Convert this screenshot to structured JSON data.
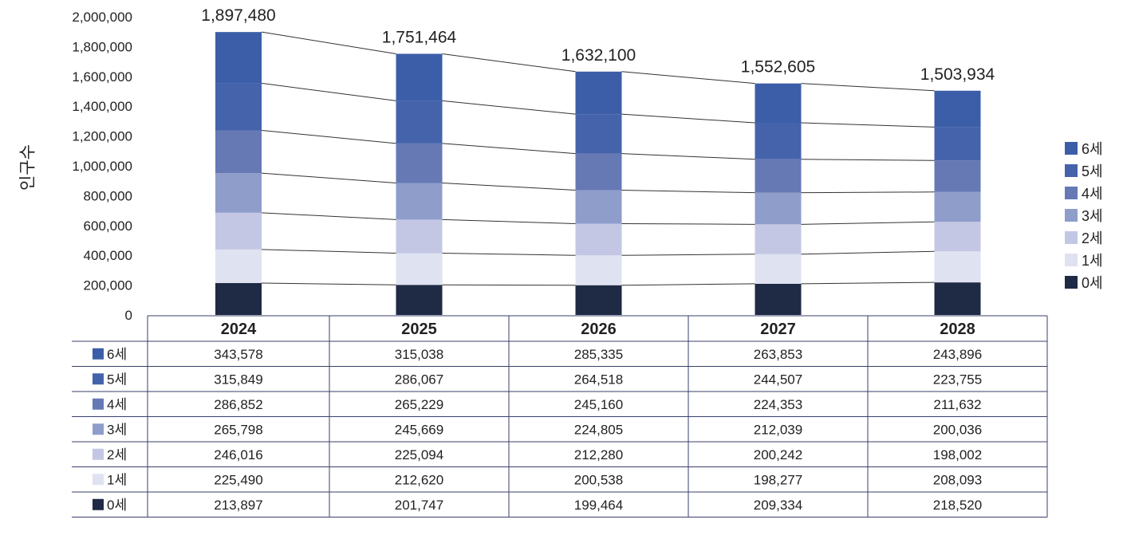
{
  "chart_data": {
    "type": "bar",
    "stacked": true,
    "categories": [
      "2024",
      "2025",
      "2026",
      "2027",
      "2028"
    ],
    "ylabel": "인구수",
    "ylim": [
      0,
      2000000
    ],
    "yticks": [
      "0",
      "200,000",
      "400,000",
      "600,000",
      "800,000",
      "1,000,000",
      "1,200,000",
      "1,400,000",
      "1,600,000",
      "1,800,000",
      "2,000,000"
    ],
    "totals": [
      "1,897,480",
      "1,751,464",
      "1,632,100",
      "1,552,605",
      "1,503,934"
    ],
    "legend_position": "right",
    "grid": false,
    "series": [
      {
        "name": "0세",
        "color": "#1f2a44",
        "values": [
          213897,
          201747,
          199464,
          209334,
          218520
        ],
        "labels": [
          "213,897",
          "201,747",
          "199,464",
          "209,334",
          "218,520"
        ]
      },
      {
        "name": "1세",
        "color": "#dfe2f1",
        "values": [
          225490,
          212620,
          200538,
          198277,
          208093
        ],
        "labels": [
          "225,490",
          "212,620",
          "200,538",
          "198,277",
          "208,093"
        ]
      },
      {
        "name": "2세",
        "color": "#c3c7e4",
        "values": [
          246016,
          225094,
          212280,
          200242,
          198002
        ],
        "labels": [
          "246,016",
          "225,094",
          "212,280",
          "200,242",
          "198,002"
        ]
      },
      {
        "name": "3세",
        "color": "#8f9dcb",
        "values": [
          265798,
          245669,
          224805,
          212039,
          200036
        ],
        "labels": [
          "265,798",
          "245,669",
          "224,805",
          "212,039",
          "200,036"
        ]
      },
      {
        "name": "4세",
        "color": "#6679b5",
        "values": [
          286852,
          265229,
          245160,
          224353,
          211632
        ],
        "labels": [
          "286,852",
          "265,229",
          "245,160",
          "224,353",
          "211,632"
        ]
      },
      {
        "name": "5세",
        "color": "#4563ab",
        "values": [
          315849,
          286067,
          264518,
          244507,
          223755
        ],
        "labels": [
          "315,849",
          "286,067",
          "264,518",
          "244,507",
          "223,755"
        ]
      },
      {
        "name": "6세",
        "color": "#3c5ea8",
        "values": [
          343578,
          315038,
          285335,
          263853,
          243896
        ],
        "labels": [
          "343,578",
          "315,038",
          "285,335",
          "263,853",
          "243,896"
        ]
      }
    ]
  }
}
